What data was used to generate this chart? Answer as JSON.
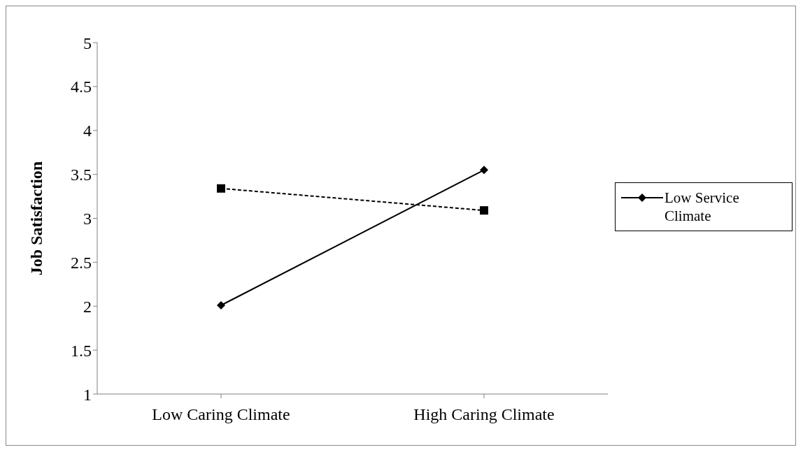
{
  "chart_data": {
    "type": "line",
    "ylabel": "Job Satisfaction",
    "categories": [
      "Low Caring Climate",
      "High Caring Climate"
    ],
    "series": [
      {
        "name": "Low Service Climate",
        "color": "#000000",
        "values": [
          2.01,
          3.55
        ],
        "marker": "diamond",
        "line_style": "solid"
      },
      {
        "color": "#000000",
        "values": [
          3.34,
          3.09
        ],
        "marker": "square",
        "line_style": "dashed"
      }
    ],
    "ylim": [
      1,
      5
    ],
    "yticks": [
      1,
      1.5,
      2,
      2.5,
      3,
      3.5,
      4,
      4.5,
      5
    ],
    "legend": "right"
  }
}
